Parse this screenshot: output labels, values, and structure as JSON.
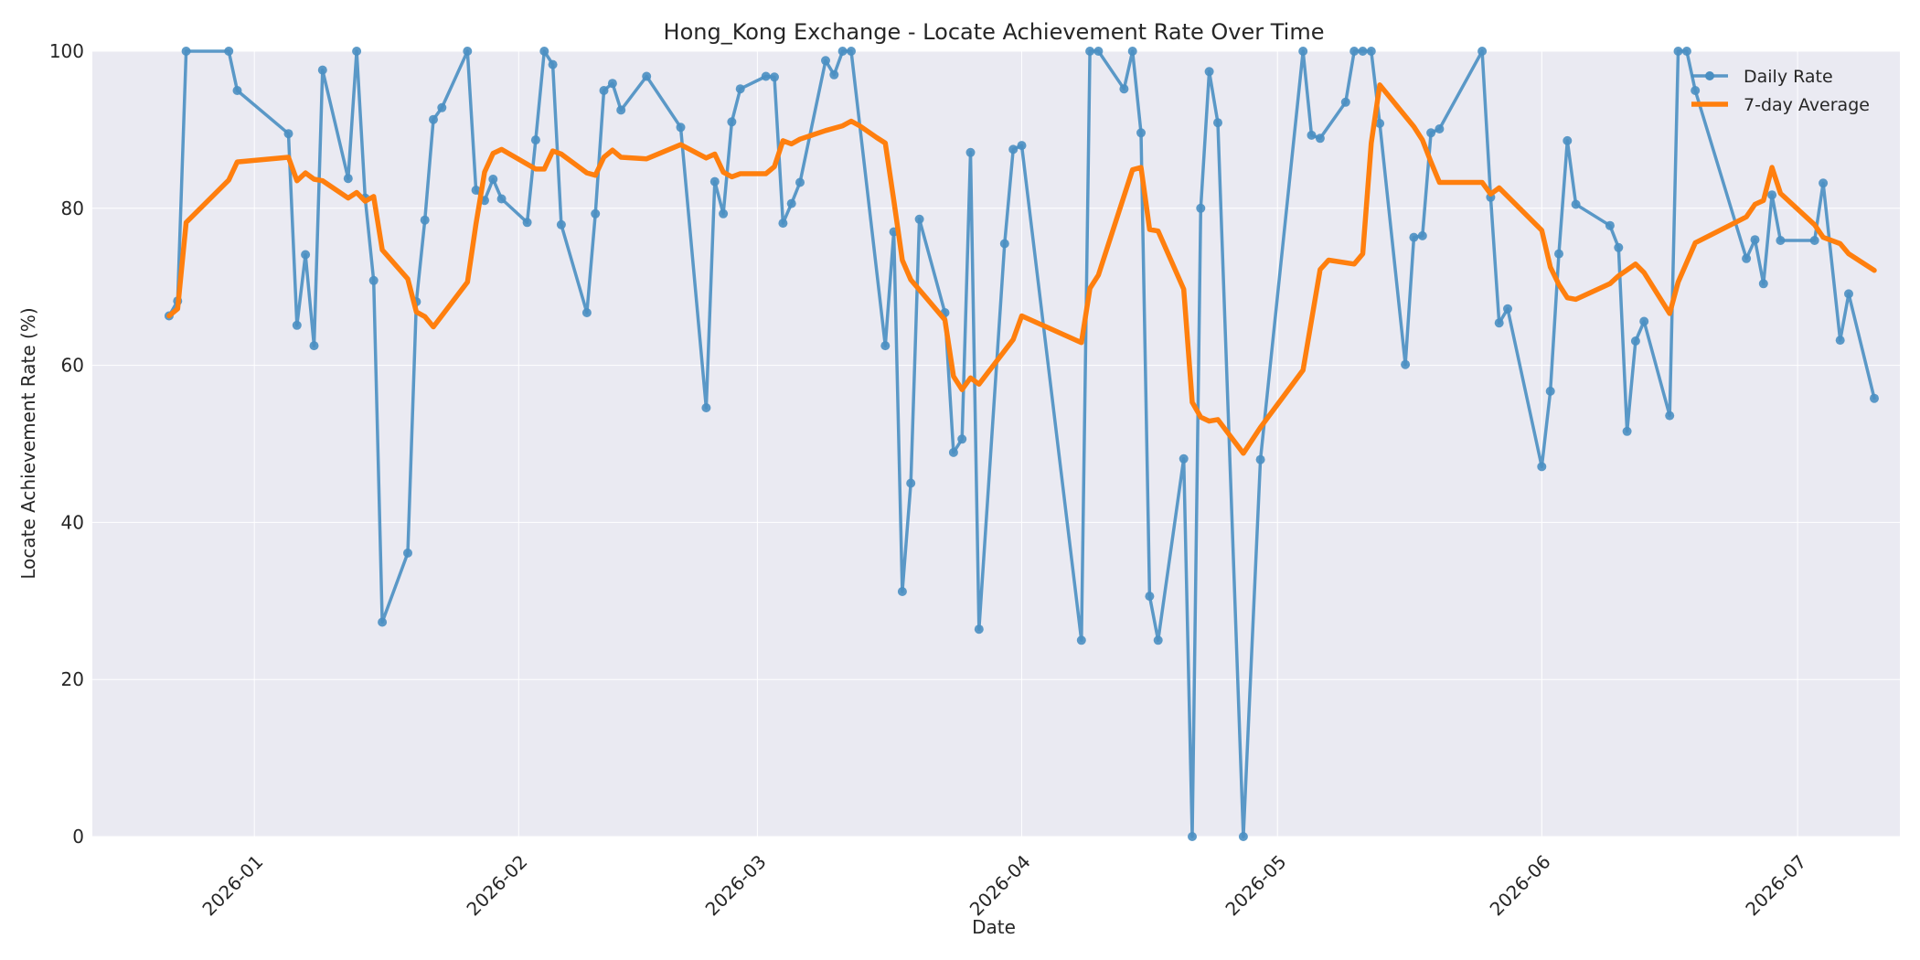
{
  "chart_data": {
    "type": "line",
    "title": "Hong_Kong Exchange - Locate Achievement Rate Over Time",
    "xlabel": "Date",
    "ylabel": "Locate Achievement Rate (%)",
    "ylim": [
      0,
      100
    ],
    "xlim": [
      "2025-12-13",
      "2026-07-13"
    ],
    "grid": true,
    "legend_position": "top-right",
    "x_ticks": [
      "2026-01",
      "2026-02",
      "2026-03",
      "2026-04",
      "2026-05",
      "2026-06",
      "2026-07"
    ],
    "y_ticks": [
      0,
      20,
      40,
      60,
      80,
      100
    ],
    "colors": {
      "daily": "#4a8fc2",
      "average": "#ff7f0e",
      "plot_bg": "#eaeaf2",
      "grid": "#ffffff"
    },
    "series": [
      {
        "name": "Daily Rate",
        "style": "line-with-markers",
        "points": [
          [
            "2025-12-22",
            66.3
          ],
          [
            "2025-12-23",
            68.2
          ],
          [
            "2025-12-24",
            100
          ],
          [
            "2025-12-29",
            100
          ],
          [
            "2025-12-30",
            95.0
          ],
          [
            "2026-01-05",
            89.5
          ],
          [
            "2026-01-06",
            65.1
          ],
          [
            "2026-01-07",
            74.1
          ],
          [
            "2026-01-08",
            62.5
          ],
          [
            "2026-01-09",
            97.6
          ],
          [
            "2026-01-12",
            83.8
          ],
          [
            "2026-01-13",
            100
          ],
          [
            "2026-01-14",
            81.3
          ],
          [
            "2026-01-15",
            70.8
          ],
          [
            "2026-01-16",
            27.3
          ],
          [
            "2026-01-19",
            36.1
          ],
          [
            "2026-01-20",
            68.1
          ],
          [
            "2026-01-21",
            78.5
          ],
          [
            "2026-01-22",
            91.3
          ],
          [
            "2026-01-23",
            92.8
          ],
          [
            "2026-01-26",
            100
          ],
          [
            "2026-01-27",
            82.3
          ],
          [
            "2026-01-28",
            81.0
          ],
          [
            "2026-01-29",
            83.7
          ],
          [
            "2026-01-30",
            81.2
          ],
          [
            "2026-02-02",
            78.2
          ],
          [
            "2026-02-03",
            88.7
          ],
          [
            "2026-02-04",
            100
          ],
          [
            "2026-02-05",
            98.3
          ],
          [
            "2026-02-06",
            77.9
          ],
          [
            "2026-02-09",
            66.7
          ],
          [
            "2026-02-10",
            79.3
          ],
          [
            "2026-02-11",
            95.0
          ],
          [
            "2026-02-12",
            95.9
          ],
          [
            "2026-02-13",
            92.5
          ],
          [
            "2026-02-16",
            96.8
          ],
          [
            "2026-02-20",
            90.3
          ],
          [
            "2026-02-23",
            54.6
          ],
          [
            "2026-02-24",
            83.4
          ],
          [
            "2026-02-25",
            79.3
          ],
          [
            "2026-02-26",
            91.0
          ],
          [
            "2026-02-27",
            95.2
          ],
          [
            "2026-03-02",
            96.8
          ],
          [
            "2026-03-03",
            96.7
          ],
          [
            "2026-03-04",
            78.1
          ],
          [
            "2026-03-05",
            80.6
          ],
          [
            "2026-03-06",
            83.3
          ],
          [
            "2026-03-09",
            98.8
          ],
          [
            "2026-03-10",
            97.0
          ],
          [
            "2026-03-11",
            100
          ],
          [
            "2026-03-12",
            100
          ],
          [
            "2026-03-16",
            62.5
          ],
          [
            "2026-03-17",
            77.0
          ],
          [
            "2026-03-18",
            31.2
          ],
          [
            "2026-03-19",
            45.0
          ],
          [
            "2026-03-20",
            78.6
          ],
          [
            "2026-03-23",
            66.7
          ],
          [
            "2026-03-24",
            48.9
          ],
          [
            "2026-03-25",
            50.6
          ],
          [
            "2026-03-26",
            87.1
          ],
          [
            "2026-03-27",
            26.4
          ],
          [
            "2026-03-30",
            75.5
          ],
          [
            "2026-03-31",
            87.5
          ],
          [
            "2026-04-01",
            88.0
          ],
          [
            "2026-04-08",
            25.0
          ],
          [
            "2026-04-09",
            100
          ],
          [
            "2026-04-10",
            100
          ],
          [
            "2026-04-13",
            95.2
          ],
          [
            "2026-04-14",
            100
          ],
          [
            "2026-04-15",
            89.6
          ],
          [
            "2026-04-16",
            30.6
          ],
          [
            "2026-04-17",
            25.0
          ],
          [
            "2026-04-20",
            48.1
          ],
          [
            "2026-04-21",
            0
          ],
          [
            "2026-04-22",
            80.0
          ],
          [
            "2026-04-23",
            97.4
          ],
          [
            "2026-04-24",
            90.9
          ],
          [
            "2026-04-27",
            0
          ],
          [
            "2026-04-29",
            48.0
          ],
          [
            "2026-05-04",
            100
          ],
          [
            "2026-05-05",
            89.3
          ],
          [
            "2026-05-06",
            88.9
          ],
          [
            "2026-05-09",
            93.5
          ],
          [
            "2026-05-10",
            100
          ],
          [
            "2026-05-11",
            100
          ],
          [
            "2026-05-12",
            100
          ],
          [
            "2026-05-13",
            90.8
          ],
          [
            "2026-05-16",
            60.1
          ],
          [
            "2026-05-17",
            76.3
          ],
          [
            "2026-05-18",
            76.5
          ],
          [
            "2026-05-19",
            89.6
          ],
          [
            "2026-05-20",
            90.1
          ],
          [
            "2026-05-25",
            100
          ],
          [
            "2026-05-26",
            81.4
          ],
          [
            "2026-05-27",
            65.4
          ],
          [
            "2026-05-28",
            67.2
          ],
          [
            "2026-06-01",
            47.1
          ],
          [
            "2026-06-02",
            56.7
          ],
          [
            "2026-06-03",
            74.2
          ],
          [
            "2026-06-04",
            88.6
          ],
          [
            "2026-06-05",
            80.5
          ],
          [
            "2026-06-09",
            77.8
          ],
          [
            "2026-06-10",
            75.0
          ],
          [
            "2026-06-11",
            51.6
          ],
          [
            "2026-06-12",
            63.1
          ],
          [
            "2026-06-13",
            65.6
          ],
          [
            "2026-06-16",
            53.6
          ],
          [
            "2026-06-17",
            100
          ],
          [
            "2026-06-18",
            100
          ],
          [
            "2026-06-19",
            95.0
          ],
          [
            "2026-06-25",
            73.6
          ],
          [
            "2026-06-26",
            76.0
          ],
          [
            "2026-06-27",
            70.4
          ],
          [
            "2026-06-28",
            81.7
          ],
          [
            "2026-06-29",
            75.9
          ],
          [
            "2026-07-03",
            75.9
          ],
          [
            "2026-07-04",
            83.2
          ],
          [
            "2026-07-06",
            63.2
          ],
          [
            "2026-07-07",
            69.1
          ],
          [
            "2026-07-10",
            55.8
          ]
        ]
      },
      {
        "name": "7-day Average",
        "style": "line",
        "points": [
          [
            "2025-12-22",
            66.3
          ],
          [
            "2025-12-23",
            67.2
          ],
          [
            "2025-12-24",
            78.2
          ],
          [
            "2025-12-29",
            83.6
          ],
          [
            "2025-12-30",
            85.9
          ],
          [
            "2026-01-05",
            86.5
          ],
          [
            "2026-01-06",
            83.5
          ],
          [
            "2026-01-07",
            84.5
          ],
          [
            "2026-01-08",
            83.7
          ],
          [
            "2026-01-09",
            83.5
          ],
          [
            "2026-01-12",
            81.3
          ],
          [
            "2026-01-13",
            82.0
          ],
          [
            "2026-01-14",
            80.9
          ],
          [
            "2026-01-15",
            81.5
          ],
          [
            "2026-01-16",
            74.7
          ],
          [
            "2026-01-19",
            71.0
          ],
          [
            "2026-01-20",
            66.8
          ],
          [
            "2026-01-21",
            66.2
          ],
          [
            "2026-01-22",
            64.9
          ],
          [
            "2026-01-26",
            70.6
          ],
          [
            "2026-01-27",
            78.0
          ],
          [
            "2026-01-28",
            84.6
          ],
          [
            "2026-01-29",
            87.0
          ],
          [
            "2026-01-30",
            87.5
          ],
          [
            "2026-02-03",
            85.0
          ],
          [
            "2026-02-04",
            85.0
          ],
          [
            "2026-02-05",
            87.3
          ],
          [
            "2026-02-06",
            86.9
          ],
          [
            "2026-02-09",
            84.5
          ],
          [
            "2026-02-10",
            84.2
          ],
          [
            "2026-02-11",
            86.5
          ],
          [
            "2026-02-12",
            87.4
          ],
          [
            "2026-02-13",
            86.5
          ],
          [
            "2026-02-16",
            86.3
          ],
          [
            "2026-02-20",
            88.1
          ],
          [
            "2026-02-23",
            86.4
          ],
          [
            "2026-02-24",
            86.9
          ],
          [
            "2026-02-25",
            84.6
          ],
          [
            "2026-02-26",
            84.0
          ],
          [
            "2026-02-27",
            84.4
          ],
          [
            "2026-03-02",
            84.4
          ],
          [
            "2026-03-03",
            85.3
          ],
          [
            "2026-03-04",
            88.6
          ],
          [
            "2026-03-05",
            88.2
          ],
          [
            "2026-03-06",
            88.8
          ],
          [
            "2026-03-09",
            89.9
          ],
          [
            "2026-03-11",
            90.5
          ],
          [
            "2026-03-12",
            91.1
          ],
          [
            "2026-03-13",
            90.5
          ],
          [
            "2026-03-15",
            89.0
          ],
          [
            "2026-03-16",
            88.3
          ],
          [
            "2026-03-17",
            81.0
          ],
          [
            "2026-03-18",
            73.4
          ],
          [
            "2026-03-19",
            70.9
          ],
          [
            "2026-03-23",
            65.8
          ],
          [
            "2026-03-24",
            58.6
          ],
          [
            "2026-03-25",
            56.9
          ],
          [
            "2026-03-26",
            58.4
          ],
          [
            "2026-03-27",
            57.6
          ],
          [
            "2026-03-31",
            63.3
          ],
          [
            "2026-04-01",
            66.3
          ],
          [
            "2026-04-08",
            62.9
          ],
          [
            "2026-04-09",
            69.8
          ],
          [
            "2026-04-10",
            71.5
          ],
          [
            "2026-04-14",
            84.9
          ],
          [
            "2026-04-15",
            85.2
          ],
          [
            "2026-04-16",
            77.3
          ],
          [
            "2026-04-17",
            77.1
          ],
          [
            "2026-04-20",
            69.7
          ],
          [
            "2026-04-21",
            55.3
          ],
          [
            "2026-04-22",
            53.4
          ],
          [
            "2026-04-23",
            52.9
          ],
          [
            "2026-04-24",
            53.1
          ],
          [
            "2026-04-27",
            48.8
          ],
          [
            "2026-04-29",
            52.1
          ],
          [
            "2026-05-04",
            59.4
          ],
          [
            "2026-05-06",
            72.2
          ],
          [
            "2026-05-07",
            73.4
          ],
          [
            "2026-05-10",
            72.9
          ],
          [
            "2026-05-11",
            74.2
          ],
          [
            "2026-05-12",
            88.3
          ],
          [
            "2026-05-13",
            95.7
          ],
          [
            "2026-05-17",
            90.4
          ],
          [
            "2026-05-18",
            88.7
          ],
          [
            "2026-05-19",
            85.9
          ],
          [
            "2026-05-20",
            83.3
          ],
          [
            "2026-05-25",
            83.3
          ],
          [
            "2026-05-26",
            81.8
          ],
          [
            "2026-05-27",
            82.6
          ],
          [
            "2026-06-01",
            77.2
          ],
          [
            "2026-06-02",
            72.5
          ],
          [
            "2026-06-03",
            70.3
          ],
          [
            "2026-06-04",
            68.6
          ],
          [
            "2026-06-05",
            68.4
          ],
          [
            "2026-06-09",
            70.4
          ],
          [
            "2026-06-10",
            71.4
          ],
          [
            "2026-06-12",
            72.9
          ],
          [
            "2026-06-13",
            71.8
          ],
          [
            "2026-06-16",
            66.6
          ],
          [
            "2026-06-17",
            70.6
          ],
          [
            "2026-06-19",
            75.6
          ],
          [
            "2026-06-25",
            78.9
          ],
          [
            "2026-06-26",
            80.5
          ],
          [
            "2026-06-27",
            81.0
          ],
          [
            "2026-06-28",
            85.2
          ],
          [
            "2026-06-29",
            81.9
          ],
          [
            "2026-07-03",
            77.9
          ],
          [
            "2026-07-04",
            76.3
          ],
          [
            "2026-07-06",
            75.5
          ],
          [
            "2026-07-07",
            74.2
          ],
          [
            "2026-07-10",
            72.1
          ]
        ]
      }
    ]
  }
}
